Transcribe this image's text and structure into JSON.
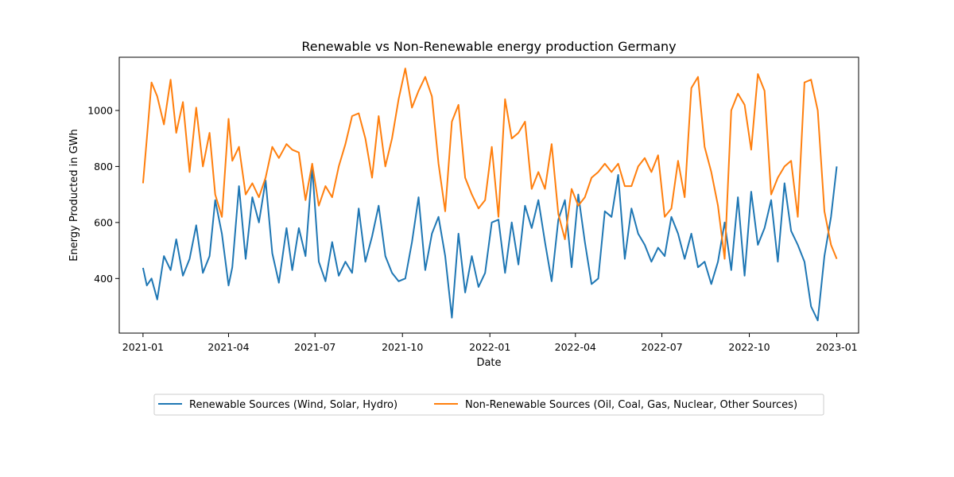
{
  "chart_data": {
    "type": "line",
    "title": "Renewable vs Non-Renewable energy production Germany",
    "xlabel": "Date",
    "ylabel": "Energy Producted in GWh",
    "x_type": "date",
    "xlim": [
      "2020-12-07",
      "2023-01-24"
    ],
    "ylim": [
      205,
      1190
    ],
    "x_ticks": [
      "2021-01-01",
      "2021-04-01",
      "2021-07-01",
      "2021-10-01",
      "2022-01-01",
      "2022-04-01",
      "2022-07-01",
      "2022-10-01",
      "2023-01-01"
    ],
    "x_tick_labels": [
      "2021-01",
      "2021-04",
      "2021-07",
      "2021-10",
      "2022-01",
      "2022-04",
      "2022-07",
      "2022-10",
      "2023-01"
    ],
    "y_ticks": [
      400,
      600,
      800,
      1000
    ],
    "y_tick_labels": [
      "400",
      "600",
      "800",
      "1000"
    ],
    "grid": false,
    "legend_position": "bottom-center",
    "series": [
      {
        "name": "Renewable Sources (Wind, Solar, Hydro)",
        "color": "#1f77b4",
        "x": [
          "2021-01-01",
          "2021-01-05",
          "2021-01-10",
          "2021-01-16",
          "2021-01-23",
          "2021-01-30",
          "2021-02-05",
          "2021-02-12",
          "2021-02-19",
          "2021-02-26",
          "2021-03-05",
          "2021-03-12",
          "2021-03-18",
          "2021-03-25",
          "2021-04-01",
          "2021-04-05",
          "2021-04-12",
          "2021-04-19",
          "2021-04-26",
          "2021-05-03",
          "2021-05-10",
          "2021-05-17",
          "2021-05-24",
          "2021-06-01",
          "2021-06-07",
          "2021-06-14",
          "2021-06-21",
          "2021-06-28",
          "2021-07-05",
          "2021-07-12",
          "2021-07-19",
          "2021-07-26",
          "2021-08-02",
          "2021-08-09",
          "2021-08-16",
          "2021-08-23",
          "2021-08-30",
          "2021-09-06",
          "2021-09-13",
          "2021-09-20",
          "2021-09-27",
          "2021-10-04",
          "2021-10-11",
          "2021-10-18",
          "2021-10-25",
          "2021-11-01",
          "2021-11-08",
          "2021-11-15",
          "2021-11-22",
          "2021-11-29",
          "2021-12-06",
          "2021-12-13",
          "2021-12-20",
          "2021-12-27",
          "2022-01-03",
          "2022-01-10",
          "2022-01-17",
          "2022-01-24",
          "2022-01-31",
          "2022-02-07",
          "2022-02-14",
          "2022-02-21",
          "2022-02-28",
          "2022-03-07",
          "2022-03-14",
          "2022-03-21",
          "2022-03-28",
          "2022-04-04",
          "2022-04-11",
          "2022-04-18",
          "2022-04-25",
          "2022-05-02",
          "2022-05-09",
          "2022-05-16",
          "2022-05-23",
          "2022-05-30",
          "2022-06-06",
          "2022-06-13",
          "2022-06-20",
          "2022-06-27",
          "2022-07-04",
          "2022-07-11",
          "2022-07-18",
          "2022-07-25",
          "2022-08-01",
          "2022-08-08",
          "2022-08-15",
          "2022-08-22",
          "2022-08-29",
          "2022-09-05",
          "2022-09-12",
          "2022-09-19",
          "2022-09-26",
          "2022-10-03",
          "2022-10-10",
          "2022-10-17",
          "2022-10-24",
          "2022-10-31",
          "2022-11-07",
          "2022-11-14",
          "2022-11-21",
          "2022-11-28",
          "2022-12-05",
          "2022-12-12",
          "2022-12-19",
          "2022-12-26",
          "2023-01-01"
        ],
        "values": [
          438,
          375,
          400,
          325,
          480,
          430,
          540,
          410,
          470,
          590,
          420,
          480,
          680,
          560,
          375,
          440,
          730,
          470,
          690,
          600,
          750,
          490,
          385,
          580,
          430,
          580,
          480,
          800,
          460,
          390,
          530,
          410,
          460,
          420,
          650,
          460,
          550,
          660,
          480,
          420,
          390,
          400,
          530,
          690,
          430,
          560,
          620,
          480,
          260,
          560,
          350,
          480,
          370,
          420,
          600,
          610,
          420,
          600,
          450,
          660,
          580,
          680,
          530,
          390,
          610,
          680,
          440,
          700,
          530,
          380,
          400,
          640,
          620,
          770,
          470,
          650,
          560,
          520,
          460,
          510,
          480,
          620,
          560,
          470,
          560,
          440,
          460,
          380,
          460,
          600,
          430,
          690,
          410,
          710,
          520,
          580,
          680,
          460,
          740,
          570,
          520,
          460,
          300,
          250,
          480,
          620,
          800
        ]
      },
      {
        "name": "Non-Renewable Sources (Oil, Coal, Gas, Nuclear, Other Sources)",
        "color": "#ff7f0e",
        "x": [
          "2021-01-01",
          "2021-01-05",
          "2021-01-10",
          "2021-01-16",
          "2021-01-23",
          "2021-01-30",
          "2021-02-05",
          "2021-02-12",
          "2021-02-19",
          "2021-02-26",
          "2021-03-05",
          "2021-03-12",
          "2021-03-18",
          "2021-03-25",
          "2021-04-01",
          "2021-04-05",
          "2021-04-12",
          "2021-04-19",
          "2021-04-26",
          "2021-05-03",
          "2021-05-10",
          "2021-05-17",
          "2021-05-24",
          "2021-06-01",
          "2021-06-07",
          "2021-06-14",
          "2021-06-21",
          "2021-06-28",
          "2021-07-05",
          "2021-07-12",
          "2021-07-19",
          "2021-07-26",
          "2021-08-02",
          "2021-08-09",
          "2021-08-16",
          "2021-08-23",
          "2021-08-30",
          "2021-09-06",
          "2021-09-13",
          "2021-09-20",
          "2021-09-27",
          "2021-10-04",
          "2021-10-11",
          "2021-10-18",
          "2021-10-25",
          "2021-11-01",
          "2021-11-08",
          "2021-11-15",
          "2021-11-22",
          "2021-11-29",
          "2021-12-06",
          "2021-12-13",
          "2021-12-20",
          "2021-12-27",
          "2022-01-03",
          "2022-01-10",
          "2022-01-17",
          "2022-01-24",
          "2022-01-31",
          "2022-02-07",
          "2022-02-14",
          "2022-02-21",
          "2022-02-28",
          "2022-03-07",
          "2022-03-14",
          "2022-03-21",
          "2022-03-28",
          "2022-04-04",
          "2022-04-11",
          "2022-04-18",
          "2022-04-25",
          "2022-05-02",
          "2022-05-09",
          "2022-05-16",
          "2022-05-23",
          "2022-05-30",
          "2022-06-06",
          "2022-06-13",
          "2022-06-20",
          "2022-06-27",
          "2022-07-04",
          "2022-07-11",
          "2022-07-18",
          "2022-07-25",
          "2022-08-01",
          "2022-08-08",
          "2022-08-15",
          "2022-08-22",
          "2022-08-29",
          "2022-09-05",
          "2022-09-12",
          "2022-09-19",
          "2022-09-26",
          "2022-10-03",
          "2022-10-10",
          "2022-10-17",
          "2022-10-24",
          "2022-10-31",
          "2022-11-07",
          "2022-11-14",
          "2022-11-21",
          "2022-11-28",
          "2022-12-05",
          "2022-12-12",
          "2022-12-19",
          "2022-12-26",
          "2023-01-01"
        ],
        "values": [
          740,
          900,
          1100,
          1050,
          950,
          1110,
          920,
          1030,
          780,
          1010,
          800,
          920,
          700,
          620,
          970,
          820,
          870,
          700,
          740,
          690,
          760,
          870,
          830,
          880,
          860,
          850,
          680,
          810,
          660,
          730,
          690,
          800,
          880,
          980,
          990,
          900,
          760,
          980,
          800,
          900,
          1040,
          1150,
          1010,
          1070,
          1120,
          1050,
          810,
          640,
          960,
          1020,
          760,
          700,
          650,
          680,
          870,
          620,
          1040,
          900,
          920,
          960,
          720,
          780,
          720,
          880,
          630,
          540,
          720,
          660,
          690,
          760,
          780,
          810,
          780,
          810,
          730,
          730,
          800,
          830,
          780,
          840,
          620,
          650,
          820,
          690,
          1080,
          1120,
          870,
          780,
          660,
          470,
          1000,
          1060,
          1020,
          860,
          1130,
          1070,
          700,
          760,
          800,
          820,
          620,
          1100,
          1110,
          1000,
          640,
          520,
          470
        ]
      }
    ]
  }
}
